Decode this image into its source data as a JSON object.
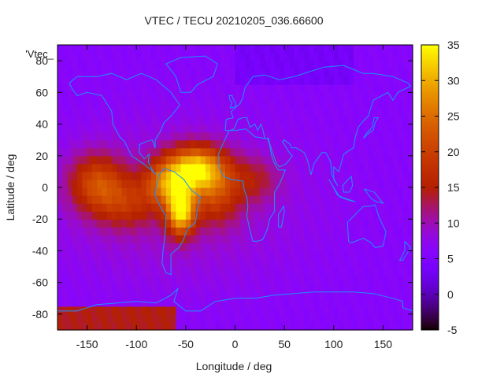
{
  "chart_data": {
    "type": "heatmap",
    "title": "VTEC / TECU 20210205_036.66600",
    "xlabel": "Longitude / deg",
    "ylabel": "Latitude / deg",
    "key_label": "'Vtec_",
    "xlim": [
      -180,
      180
    ],
    "ylim": [
      -90,
      90
    ],
    "x_ticks": [
      -150,
      -100,
      -50,
      0,
      50,
      100,
      150
    ],
    "y_ticks": [
      -80,
      -60,
      -40,
      -20,
      0,
      20,
      40,
      60,
      80
    ],
    "color_range": [
      -5,
      35
    ],
    "colorbar_ticks": [
      35,
      30,
      25,
      20,
      15,
      10,
      5,
      0,
      -5
    ],
    "grid": false,
    "colorbar_position": "right",
    "overlay": "coastlines",
    "overlay_color": "#1e90ff",
    "enhancement_regions": [
      {
        "lon": -40,
        "lat": 12,
        "peak_tecu": 31
      },
      {
        "lon": -55,
        "lat": -15,
        "peak_tecu": 33
      },
      {
        "lon": -140,
        "lat": 3,
        "peak_tecu": 22
      },
      {
        "lon": 20,
        "lat": 5,
        "peak_tecu": 16
      }
    ],
    "background_tecu": 6
  }
}
